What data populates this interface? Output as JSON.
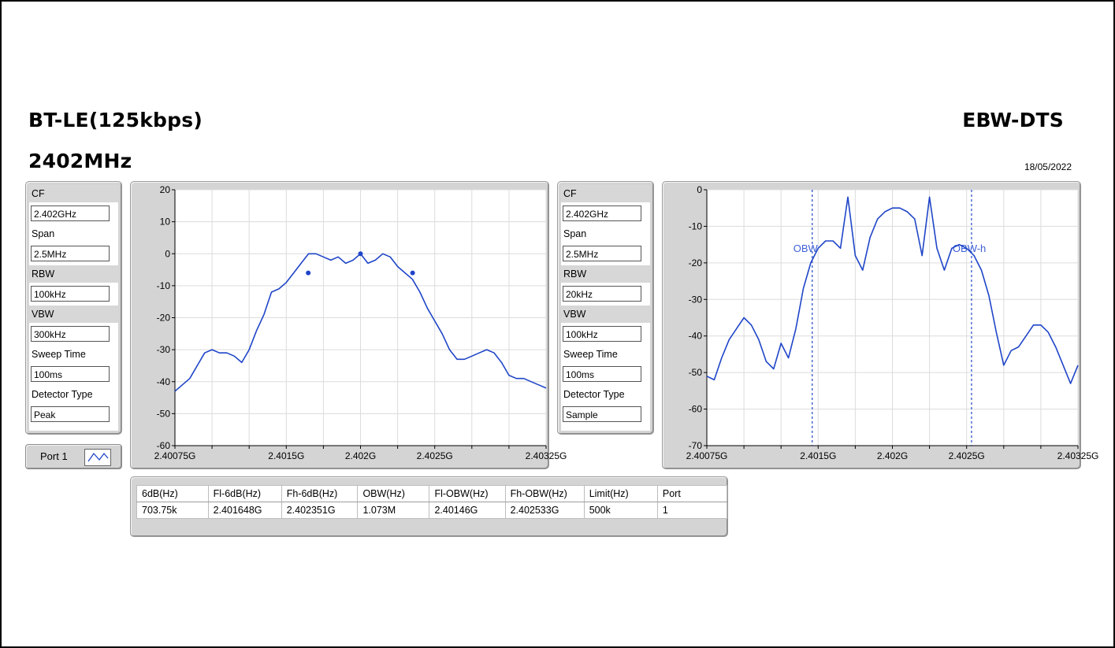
{
  "header": {
    "mode_title": "BT-LE(125kbps)",
    "freq_title": "2402MHz",
    "test_title": "EBW-DTS",
    "date": "18/05/2022"
  },
  "left_settings": [
    {
      "label": "CF",
      "value": "2.402GHz"
    },
    {
      "label": "Span",
      "value": "2.5MHz"
    },
    {
      "label": "RBW",
      "value": "100kHz"
    },
    {
      "label": "VBW",
      "value": "300kHz"
    },
    {
      "label": "Sweep Time",
      "value": "100ms"
    },
    {
      "label": "Detector Type",
      "value": "Peak"
    }
  ],
  "right_settings": [
    {
      "label": "CF",
      "value": "2.402GHz"
    },
    {
      "label": "Span",
      "value": "2.5MHz"
    },
    {
      "label": "RBW",
      "value": "20kHz"
    },
    {
      "label": "VBW",
      "value": "100kHz"
    },
    {
      "label": "Sweep Time",
      "value": "100ms"
    },
    {
      "label": "Detector Type",
      "value": "Sample"
    }
  ],
  "port_selector": {
    "label": "Port 1"
  },
  "results_table": {
    "headers": [
      "6dB(Hz)",
      "Fl-6dB(Hz)",
      "Fh-6dB(Hz)",
      "OBW(Hz)",
      "Fl-OBW(Hz)",
      "Fh-OBW(Hz)",
      "Limit(Hz)",
      "Port"
    ],
    "rows": [
      [
        "703.75k",
        "2.401648G",
        "2.402351G",
        "1.073M",
        "2.40146G",
        "2.402533G",
        "500k",
        "1"
      ]
    ]
  },
  "colors": {
    "trace": "#1f45c8",
    "grid": "#dcdcdc",
    "marker_text": "#3d5fd6"
  },
  "chart_data": [
    {
      "type": "line",
      "title": "",
      "xlabel": "",
      "ylabel": "",
      "xlim": [
        2.40075,
        2.40325
      ],
      "ylim": [
        -60,
        20
      ],
      "grid": true,
      "x_tick_labels": [
        "2.40075G",
        "2.4015G",
        "2.402G",
        "2.4025G",
        "2.40325G"
      ],
      "x_tick_values": [
        2.40075,
        2.4015,
        2.402,
        2.4025,
        2.40325
      ],
      "y_ticks": [
        20,
        10,
        0,
        -10,
        -20,
        -30,
        -40,
        -50,
        -60
      ],
      "series": [
        {
          "x": [
            2.40075,
            2.4008,
            2.40085,
            2.4009,
            2.40095,
            2.401,
            2.40105,
            2.4011,
            2.40115,
            2.4012,
            2.40125,
            2.4013,
            2.40135,
            2.4014,
            2.40145,
            2.4015,
            2.40155,
            2.4016,
            2.40165,
            2.4017,
            2.40175,
            2.4018,
            2.40185,
            2.4019,
            2.40195,
            2.402,
            2.40205,
            2.4021,
            2.40215,
            2.4022,
            2.40225,
            2.4023,
            2.40235,
            2.4024,
            2.40245,
            2.4025,
            2.40255,
            2.4026,
            2.40265,
            2.4027,
            2.40275,
            2.4028,
            2.40285,
            2.4029,
            2.40295,
            2.403,
            2.40305,
            2.4031,
            2.40315,
            2.4032,
            2.40325
          ],
          "y": [
            -43,
            -41,
            -39,
            -35,
            -31,
            -30,
            -31,
            -31,
            -32,
            -34,
            -30,
            -24,
            -19,
            -12,
            -11,
            -9,
            -6,
            -3,
            0,
            0,
            -1,
            -2,
            -1,
            -3,
            -2,
            0,
            -3,
            -2,
            0,
            -1,
            -4,
            -6,
            -8,
            -12,
            -17,
            -21,
            -25,
            -30,
            -33,
            -33,
            -32,
            -31,
            -30,
            -31,
            -34,
            -38,
            -39,
            -39,
            -40,
            -41,
            -42
          ]
        }
      ],
      "markers": [
        {
          "x": 2.401648,
          "y": -6
        },
        {
          "x": 2.402,
          "y": 0
        },
        {
          "x": 2.402351,
          "y": -6
        }
      ]
    },
    {
      "type": "line",
      "title": "",
      "xlabel": "",
      "ylabel": "",
      "xlim": [
        2.40075,
        2.40325
      ],
      "ylim": [
        -70,
        0
      ],
      "grid": true,
      "x_tick_labels": [
        "2.40075G",
        "2.4015G",
        "2.402G",
        "2.4025G",
        "2.40325G"
      ],
      "x_tick_values": [
        2.40075,
        2.4015,
        2.402,
        2.4025,
        2.40325
      ],
      "y_ticks": [
        0,
        -10,
        -20,
        -30,
        -40,
        -50,
        -60,
        -70
      ],
      "series": [
        {
          "x": [
            2.40075,
            2.4008,
            2.40085,
            2.4009,
            2.40095,
            2.401,
            2.40105,
            2.4011,
            2.40115,
            2.4012,
            2.40125,
            2.4013,
            2.40135,
            2.4014,
            2.40145,
            2.4015,
            2.40155,
            2.4016,
            2.40165,
            2.4017,
            2.40175,
            2.4018,
            2.40185,
            2.4019,
            2.40195,
            2.402,
            2.40205,
            2.4021,
            2.40215,
            2.4022,
            2.40225,
            2.4023,
            2.40235,
            2.4024,
            2.40245,
            2.4025,
            2.40255,
            2.4026,
            2.40265,
            2.4027,
            2.40275,
            2.4028,
            2.40285,
            2.4029,
            2.40295,
            2.403,
            2.40305,
            2.4031,
            2.40315,
            2.4032,
            2.40325
          ],
          "y": [
            -51,
            -52,
            -46,
            -41,
            -38,
            -35,
            -37,
            -41,
            -47,
            -49,
            -42,
            -46,
            -38,
            -27,
            -20,
            -16,
            -14,
            -14,
            -16,
            -2,
            -18,
            -22,
            -13,
            -8,
            -6,
            -5,
            -5,
            -6,
            -8,
            -18,
            -2,
            -16,
            -22,
            -16,
            -15,
            -16,
            -18,
            -22,
            -29,
            -39,
            -48,
            -44,
            -43,
            -40,
            -37,
            -37,
            -39,
            -43,
            -48,
            -53,
            -48
          ]
        }
      ],
      "markers": [
        {
          "label": "OBW",
          "x": 2.40146
        },
        {
          "label": "OBW-h",
          "x": 2.402533
        }
      ]
    }
  ]
}
